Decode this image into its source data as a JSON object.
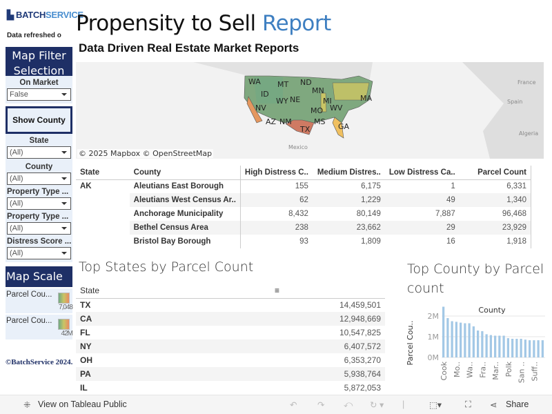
{
  "logo": {
    "part1": "BATCH",
    "part2": "SERVICE"
  },
  "refreshed": "Data refreshed o",
  "sidebar": {
    "filter_title": "Map Filter Selection",
    "filters": [
      {
        "label": "On Market",
        "value": "False"
      },
      {
        "label": "State",
        "value": "(All)"
      },
      {
        "label": "County",
        "value": "(All)"
      },
      {
        "label": "Property Type ...",
        "value": "(All)"
      },
      {
        "label": "Property Type ...",
        "value": "(All)"
      },
      {
        "label": "Distress Score ...",
        "value": "(All)"
      }
    ],
    "show_county": "Show County",
    "map_scale": "Map Scale",
    "legends": [
      {
        "label": "Parcel Cou...",
        "value": "7,048"
      },
      {
        "label": "Parcel Cou...",
        "value": "42M"
      }
    ],
    "copyright": "©BatchService 2024."
  },
  "header": {
    "title_main": "Propensity to Sell ",
    "title_accent": "Report",
    "subtitle": "Data Driven Real Estate Market Reports"
  },
  "map": {
    "attribution": "© 2025 Mapbox  © OpenStreetMap",
    "places": [
      "France",
      "Spain",
      "Algeria",
      "Mexico"
    ],
    "states": [
      "WA",
      "MT",
      "ND",
      "MN",
      "ID",
      "WY",
      "MI",
      "NE",
      "MA",
      "NV",
      "MO",
      "WV",
      "AZ",
      "NM",
      "MS",
      "GA",
      "TX"
    ],
    "colors": {
      "low": "#6fa884",
      "mid": "#c9c565",
      "high": "#d9775f",
      "orange": "#e4975f",
      "yellow": "#f0c060"
    }
  },
  "detail_table": {
    "headers": [
      "State",
      "County",
      "High Distress C..",
      "Medium Distres..",
      "Low Distress Ca..",
      "Parcel Count"
    ],
    "state": "AK",
    "rows": [
      {
        "county": "Aleutians East Borough",
        "high": "155",
        "medium": "6,175",
        "low": "1",
        "parcels": "6,331"
      },
      {
        "county": "Aleutians West Census Ar..",
        "high": "62",
        "medium": "1,229",
        "low": "49",
        "parcels": "1,340"
      },
      {
        "county": "Anchorage Municipality",
        "high": "8,432",
        "medium": "80,149",
        "low": "7,887",
        "parcels": "96,468"
      },
      {
        "county": "Bethel Census Area",
        "high": "238",
        "medium": "23,662",
        "low": "29",
        "parcels": "23,929"
      },
      {
        "county": "Bristol Bay Borough",
        "high": "93",
        "medium": "1,809",
        "low": "16",
        "parcels": "1,918"
      }
    ]
  },
  "top_states": {
    "title": "Top States by Parcel Count",
    "header": "State",
    "rows": [
      {
        "state": "TX",
        "value": "14,459,501"
      },
      {
        "state": "CA",
        "value": "12,948,669"
      },
      {
        "state": "FL",
        "value": "10,547,825"
      },
      {
        "state": "NY",
        "value": "6,407,572"
      },
      {
        "state": "OH",
        "value": "6,353,270"
      },
      {
        "state": "PA",
        "value": "5,938,764"
      },
      {
        "state": "IL",
        "value": "5,872,053"
      }
    ]
  },
  "chart_data": {
    "type": "bar",
    "title": "Top County by Parcel count",
    "xlabel": "County",
    "ylabel": "Parcel Cou..",
    "ylim": [
      0,
      2.6
    ],
    "yticks": [
      "0M",
      "1M",
      "2M"
    ],
    "tick_labels": [
      {
        "index": 1,
        "label": "Cook"
      },
      {
        "index": 4,
        "label": "Mo.."
      },
      {
        "index": 7,
        "label": "Wa.."
      },
      {
        "index": 10,
        "label": "Fra.."
      },
      {
        "index": 13,
        "label": "Mar.."
      },
      {
        "index": 16,
        "label": "Polk"
      },
      {
        "index": 19,
        "label": "San .."
      },
      {
        "index": 22,
        "label": "Suff.."
      }
    ],
    "values_millions": [
      2.45,
      1.9,
      1.75,
      1.72,
      1.68,
      1.65,
      1.65,
      1.5,
      1.3,
      1.27,
      1.12,
      1.08,
      1.05,
      1.05,
      1.05,
      0.93,
      0.9,
      0.9,
      0.9,
      0.86,
      0.83,
      0.83,
      0.83,
      0.83
    ],
    "bar_color": "#a3c8e6",
    "grid": true
  },
  "toolbar": {
    "view_label": "View on Tableau Public",
    "share_label": "Share"
  }
}
